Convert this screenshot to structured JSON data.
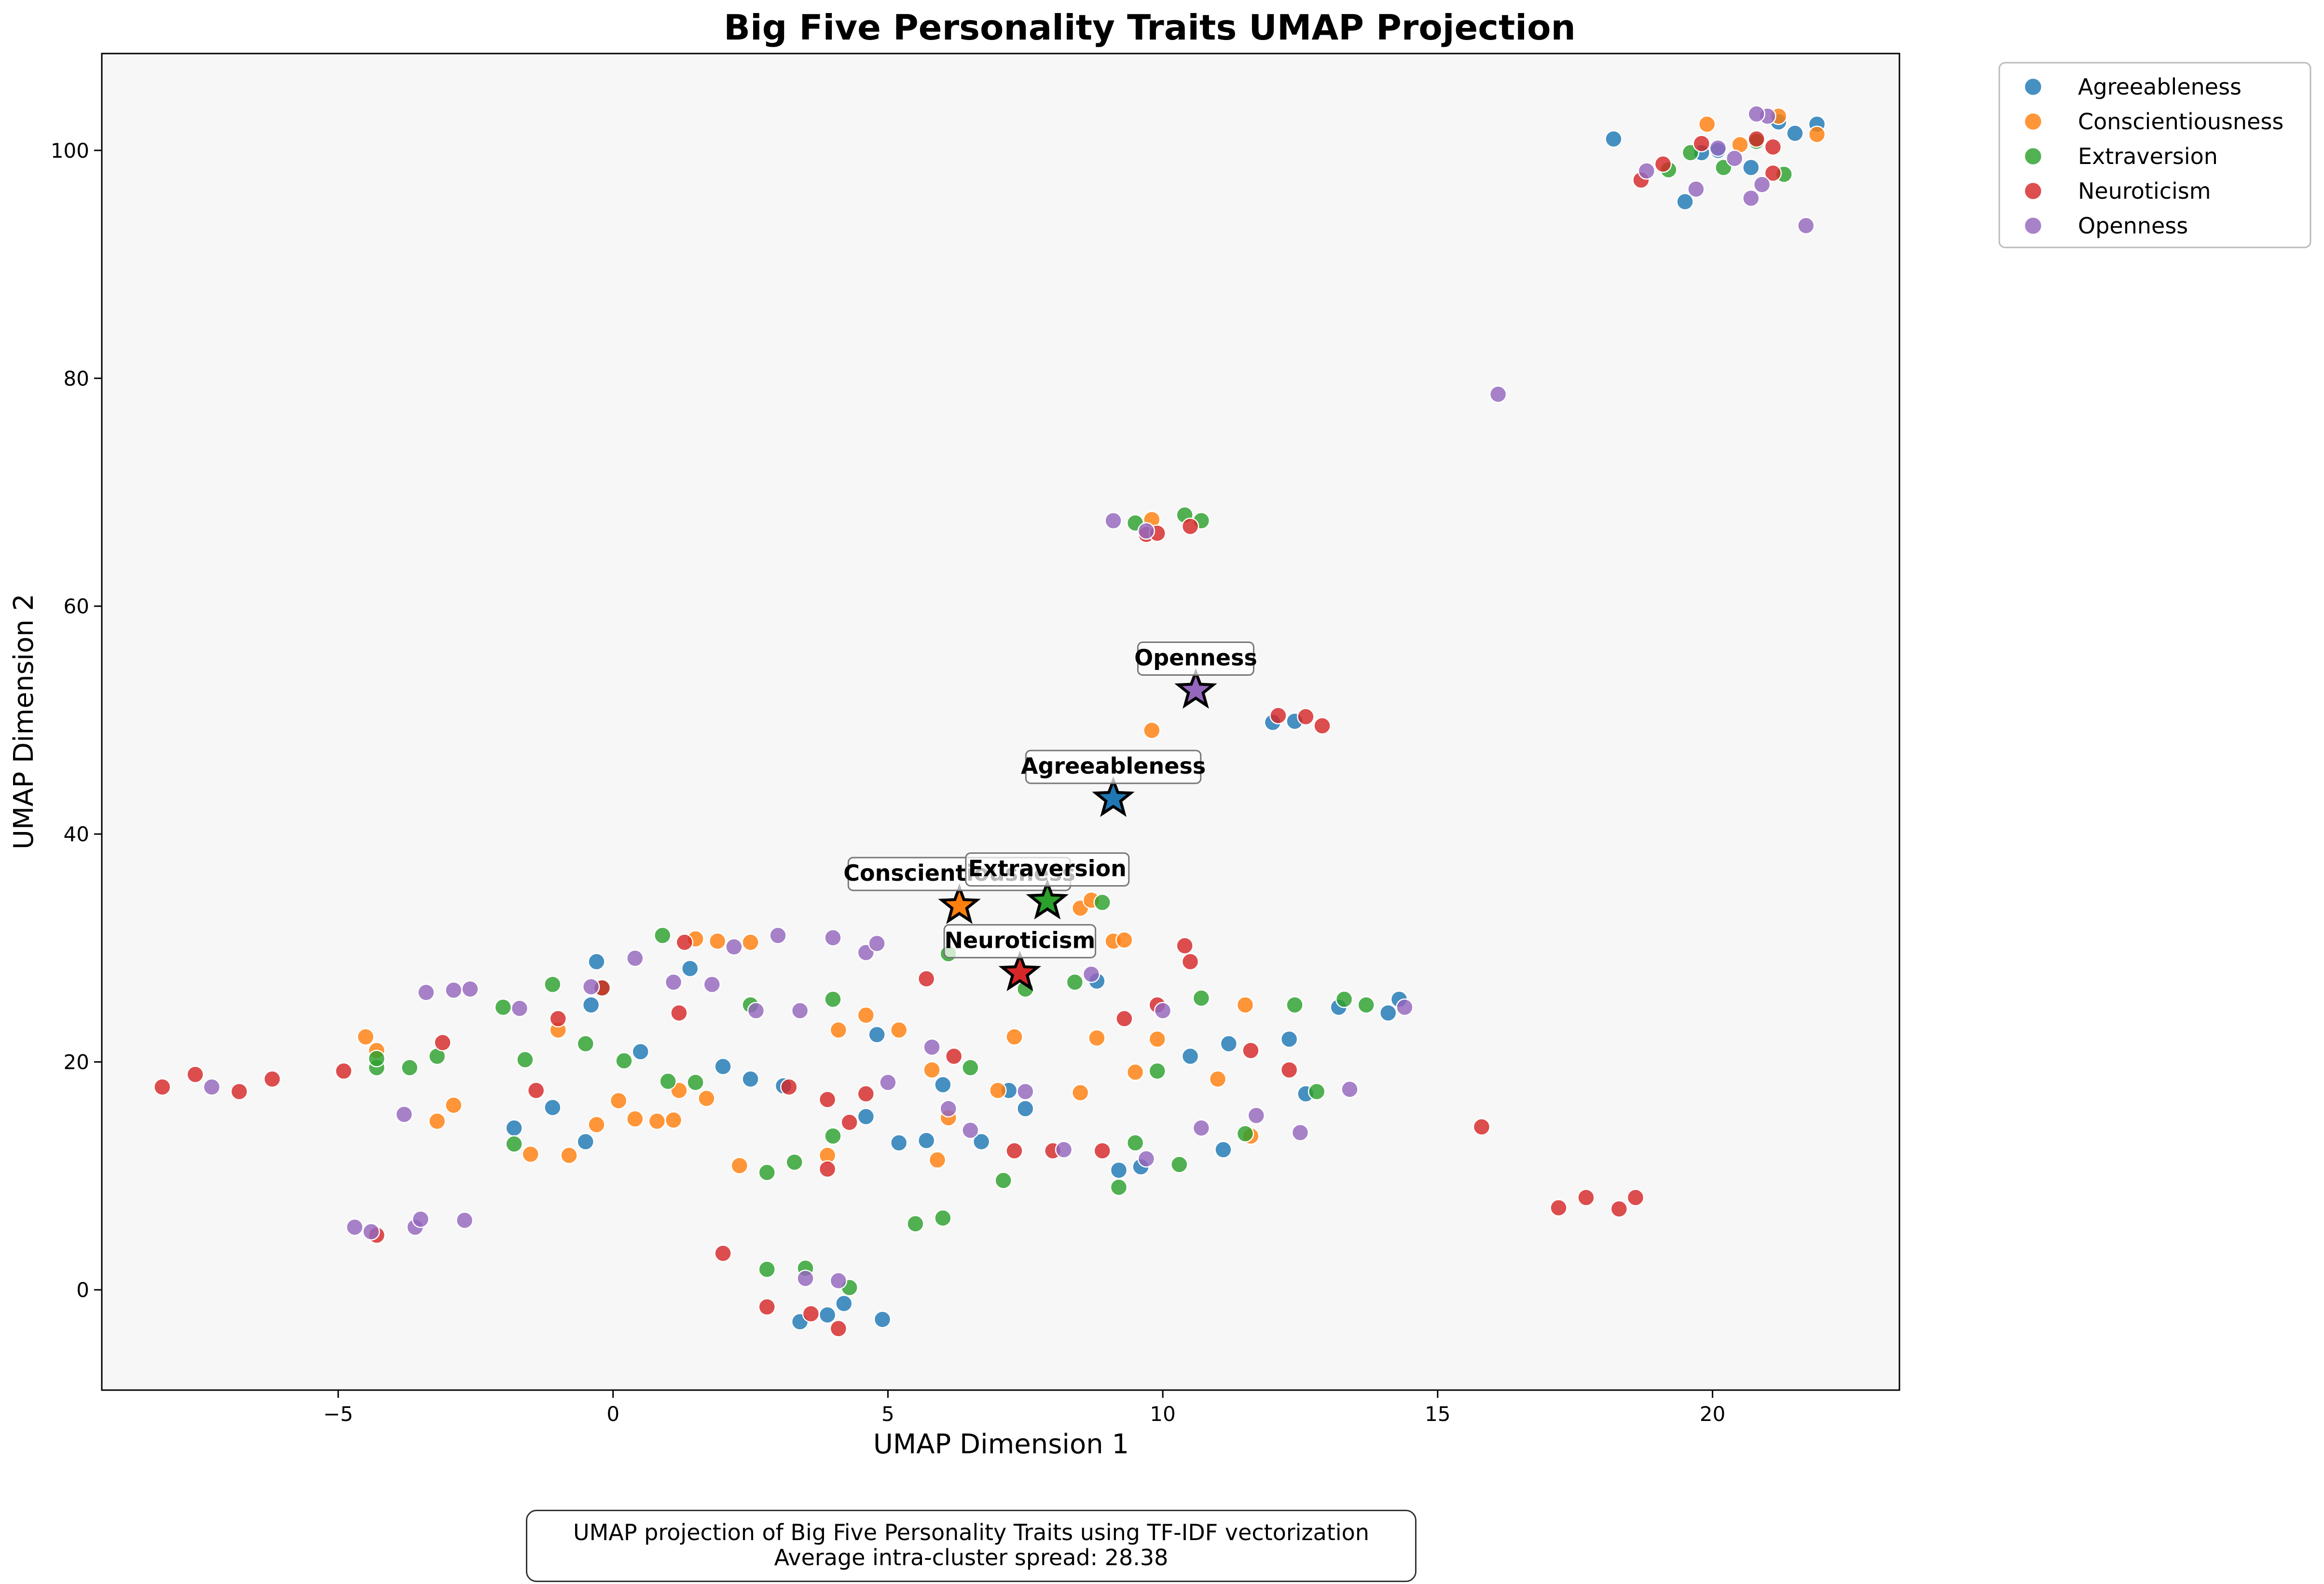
{
  "chart_data": {
    "type": "scatter",
    "title": "Big Five Personality Traits UMAP Projection",
    "xlabel": "UMAP Dimension 1",
    "ylabel": "UMAP Dimension 2",
    "xlim": [
      -9.3,
      23.4
    ],
    "ylim": [
      -8.8,
      108.5
    ],
    "xticks": [
      -5,
      0,
      5,
      10,
      15,
      20
    ],
    "yticks": [
      0,
      20,
      40,
      60,
      80,
      100
    ],
    "xtick_labels": [
      "−5",
      "0",
      "5",
      "10",
      "15",
      "20"
    ],
    "ytick_labels": [
      "0",
      "20",
      "40",
      "60",
      "80",
      "100"
    ],
    "grid": false,
    "legend_placement": "outside top-right",
    "series": [
      {
        "name": "Agreeableness",
        "color": "#1f77b4",
        "points": [
          [
            18.2,
            101
          ],
          [
            19.5,
            95.5
          ],
          [
            21.2,
            102.5
          ],
          [
            21.9,
            102.3
          ],
          [
            20.1,
            100
          ],
          [
            20.7,
            98.5
          ],
          [
            21.5,
            101.5
          ],
          [
            19.8,
            99.8
          ],
          [
            12,
            49.8
          ],
          [
            12.4,
            49.9
          ],
          [
            -1.8,
            14.2
          ],
          [
            -0.5,
            13
          ],
          [
            -0.3,
            28.8
          ],
          [
            -0.4,
            25
          ],
          [
            0.5,
            20.9
          ],
          [
            2.5,
            18.5
          ],
          [
            3.1,
            17.9
          ],
          [
            4.6,
            15.2
          ],
          [
            5.2,
            12.9
          ],
          [
            5.7,
            13.1
          ],
          [
            6.7,
            13
          ],
          [
            7.5,
            15.9
          ],
          [
            8.8,
            27.1
          ],
          [
            9.2,
            10.5
          ],
          [
            9.6,
            10.8
          ],
          [
            11.1,
            12.3
          ],
          [
            12.3,
            22
          ],
          [
            13.2,
            24.8
          ],
          [
            14.1,
            24.3
          ],
          [
            14.3,
            25.5
          ],
          [
            3.4,
            -2.8
          ],
          [
            3.9,
            -2.2
          ],
          [
            4.2,
            -1.2
          ],
          [
            4.9,
            -2.6
          ],
          [
            10.5,
            20.5
          ],
          [
            11.2,
            21.6
          ],
          [
            6,
            18
          ],
          [
            7.2,
            17.5
          ],
          [
            2,
            19.6
          ],
          [
            -1.1,
            16
          ],
          [
            12.6,
            17.2
          ],
          [
            4.8,
            22.4
          ],
          [
            1.4,
            28.2
          ]
        ]
      },
      {
        "name": "Conscientiousness",
        "color": "#ff7f0e",
        "points": [
          [
            19.9,
            102.3
          ],
          [
            21.2,
            103
          ],
          [
            21.9,
            101.4
          ],
          [
            20.5,
            100.5
          ],
          [
            9.8,
            49.1
          ],
          [
            9.8,
            67.6
          ],
          [
            -4.5,
            22.2
          ],
          [
            -4.3,
            21
          ],
          [
            -3.2,
            14.8
          ],
          [
            -2.9,
            16.2
          ],
          [
            -1.5,
            11.9
          ],
          [
            -1.0,
            22.8
          ],
          [
            -0.8,
            11.8
          ],
          [
            -0.3,
            14.5
          ],
          [
            0.1,
            16.6
          ],
          [
            0.4,
            15
          ],
          [
            0.8,
            14.8
          ],
          [
            1.1,
            14.9
          ],
          [
            1.5,
            30.8
          ],
          [
            1.7,
            16.8
          ],
          [
            1.9,
            30.6
          ],
          [
            2.3,
            10.9
          ],
          [
            2.5,
            30.5
          ],
          [
            3.9,
            11.8
          ],
          [
            4.1,
            22.8
          ],
          [
            4.6,
            24.1
          ],
          [
            5.2,
            22.8
          ],
          [
            5.8,
            19.3
          ],
          [
            6.1,
            15.1
          ],
          [
            7.0,
            17.5
          ],
          [
            7.3,
            22.2
          ],
          [
            8.5,
            33.5
          ],
          [
            8.7,
            34.2
          ],
          [
            8.8,
            22.1
          ],
          [
            9.1,
            30.6
          ],
          [
            9.3,
            30.7
          ],
          [
            9.5,
            19.1
          ],
          [
            9.9,
            22
          ],
          [
            11.0,
            18.5
          ],
          [
            11.5,
            25
          ],
          [
            11.6,
            13.5
          ],
          [
            1.2,
            17.5
          ],
          [
            5.9,
            11.4
          ],
          [
            8.5,
            17.3
          ]
        ]
      },
      {
        "name": "Extraversion",
        "color": "#2ca02c",
        "points": [
          [
            19.6,
            99.8
          ],
          [
            20.2,
            98.5
          ],
          [
            20.8,
            100.8
          ],
          [
            19.2,
            98.3
          ],
          [
            21.3,
            97.9
          ],
          [
            9.5,
            67.3
          ],
          [
            10.4,
            68
          ],
          [
            10.7,
            67.5
          ],
          [
            -4.3,
            19.5
          ],
          [
            -4.3,
            20.3
          ],
          [
            -3.7,
            19.5
          ],
          [
            -3.2,
            20.5
          ],
          [
            -2.0,
            24.8
          ],
          [
            -1.8,
            12.8
          ],
          [
            -1.6,
            20.2
          ],
          [
            -1.1,
            26.8
          ],
          [
            -0.5,
            21.6
          ],
          [
            -0.2,
            26.5
          ],
          [
            0.2,
            20.1
          ],
          [
            0.9,
            31.1
          ],
          [
            1.0,
            18.3
          ],
          [
            1.5,
            18.2
          ],
          [
            2.5,
            25
          ],
          [
            2.8,
            10.3
          ],
          [
            3.3,
            11.2
          ],
          [
            4.0,
            25.5
          ],
          [
            4.0,
            13.5
          ],
          [
            5.5,
            5.8
          ],
          [
            6.0,
            6.3
          ],
          [
            6.5,
            19.5
          ],
          [
            7.1,
            9.6
          ],
          [
            7.5,
            26.4
          ],
          [
            8.4,
            27
          ],
          [
            8.9,
            34
          ],
          [
            9.2,
            9
          ],
          [
            9.5,
            12.9
          ],
          [
            9.9,
            19.2
          ],
          [
            10.3,
            11
          ],
          [
            10.7,
            25.6
          ],
          [
            11.5,
            13.7
          ],
          [
            12.4,
            25
          ],
          [
            12.8,
            17.4
          ],
          [
            13.3,
            25.5
          ],
          [
            13.7,
            25
          ],
          [
            2.8,
            1.8
          ],
          [
            3.5,
            1.9
          ],
          [
            4.3,
            0.2
          ],
          [
            6.1,
            29.5
          ]
        ]
      },
      {
        "name": "Neuroticism",
        "color": "#d62728",
        "points": [
          [
            18.7,
            97.4
          ],
          [
            19.1,
            98.8
          ],
          [
            19.8,
            100.6
          ],
          [
            20.8,
            101
          ],
          [
            21.1,
            100.3
          ],
          [
            21.1,
            98
          ],
          [
            9.7,
            66.3
          ],
          [
            9.9,
            66.4
          ],
          [
            10.5,
            67
          ],
          [
            12.1,
            50.4
          ],
          [
            12.6,
            50.3
          ],
          [
            12.9,
            49.5
          ],
          [
            -8.2,
            17.8
          ],
          [
            -7.6,
            18.9
          ],
          [
            -6.8,
            17.4
          ],
          [
            -6.2,
            18.5
          ],
          [
            -4.9,
            19.2
          ],
          [
            -4.3,
            4.8
          ],
          [
            -3.1,
            21.7
          ],
          [
            -1.4,
            17.5
          ],
          [
            -1.0,
            23.8
          ],
          [
            -0.2,
            26.5
          ],
          [
            1.2,
            24.3
          ],
          [
            1.3,
            30.5
          ],
          [
            2.0,
            3.2
          ],
          [
            2.8,
            -1.5
          ],
          [
            3.2,
            17.8
          ],
          [
            3.6,
            -2.1
          ],
          [
            3.9,
            10.6
          ],
          [
            4.1,
            -3.4
          ],
          [
            4.3,
            14.7
          ],
          [
            5.7,
            27.3
          ],
          [
            6.2,
            20.5
          ],
          [
            7.3,
            12.2
          ],
          [
            8.0,
            12.2
          ],
          [
            8.9,
            12.2
          ],
          [
            9.3,
            23.8
          ],
          [
            9.9,
            25
          ],
          [
            10.5,
            28.8
          ],
          [
            10.4,
            30.2
          ],
          [
            11.6,
            21
          ],
          [
            12.3,
            19.3
          ],
          [
            15.8,
            14.3
          ],
          [
            17.2,
            7.2
          ],
          [
            17.7,
            8.1
          ],
          [
            18.3,
            7.1
          ],
          [
            18.6,
            8.1
          ],
          [
            4.6,
            17.2
          ],
          [
            3.9,
            16.7
          ]
        ]
      },
      {
        "name": "Openness",
        "color": "#9467bd",
        "points": [
          [
            18.8,
            98.2
          ],
          [
            19.7,
            96.6
          ],
          [
            20.1,
            100.2
          ],
          [
            20.4,
            99.3
          ],
          [
            20.9,
            97
          ],
          [
            20.7,
            95.8
          ],
          [
            21.7,
            93.4
          ],
          [
            21.0,
            103
          ],
          [
            20.8,
            103.2
          ],
          [
            16.1,
            78.6
          ],
          [
            9.1,
            67.5
          ],
          [
            9.7,
            66.6
          ],
          [
            -7.3,
            17.8
          ],
          [
            -3.8,
            15.4
          ],
          [
            -3.4,
            26.1
          ],
          [
            -2.6,
            26.4
          ],
          [
            -2.9,
            26.3
          ],
          [
            -4.7,
            5.5
          ],
          [
            -4.4,
            5.1
          ],
          [
            -3.6,
            5.5
          ],
          [
            -3.5,
            6.2
          ],
          [
            -2.7,
            6.1
          ],
          [
            -1.7,
            24.7
          ],
          [
            -0.4,
            26.6
          ],
          [
            0.4,
            29.1
          ],
          [
            1.1,
            27
          ],
          [
            1.8,
            26.8
          ],
          [
            2.2,
            30.1
          ],
          [
            2.6,
            24.5
          ],
          [
            3.0,
            31.1
          ],
          [
            3.4,
            24.5
          ],
          [
            4.0,
            30.9
          ],
          [
            4.6,
            29.6
          ],
          [
            4.8,
            30.4
          ],
          [
            5.0,
            18.2
          ],
          [
            5.8,
            21.3
          ],
          [
            6.5,
            14
          ],
          [
            7.5,
            17.4
          ],
          [
            8.2,
            12.3
          ],
          [
            8.7,
            27.7
          ],
          [
            9.7,
            11.5
          ],
          [
            10.7,
            14.2
          ],
          [
            11.7,
            15.3
          ],
          [
            12.5,
            13.8
          ],
          [
            13.4,
            17.6
          ],
          [
            14.4,
            24.8
          ],
          [
            4.1,
            0.8
          ],
          [
            3.5,
            1.0
          ],
          [
            6.1,
            15.9
          ],
          [
            10.0,
            24.5
          ]
        ]
      }
    ],
    "centroids": [
      {
        "name": "Openness",
        "x": 10.6,
        "y": 52.6,
        "color": "#9467bd"
      },
      {
        "name": "Agreeableness",
        "x": 9.1,
        "y": 43.1,
        "color": "#1f77b4"
      },
      {
        "name": "Conscientiousness",
        "x": 6.3,
        "y": 33.7,
        "color": "#ff7f0e"
      },
      {
        "name": "Extraversion",
        "x": 7.9,
        "y": 34.1,
        "color": "#2ca02c"
      },
      {
        "name": "Neuroticism",
        "x": 7.4,
        "y": 27.8,
        "color": "#d62728"
      }
    ]
  },
  "caption": {
    "line1": "UMAP projection of Big Five Personality Traits using TF-IDF vectorization",
    "line2": "Average intra-cluster spread: 28.38"
  },
  "colors": {
    "plot_background": "#f7f7f7",
    "axis": "#000000"
  }
}
